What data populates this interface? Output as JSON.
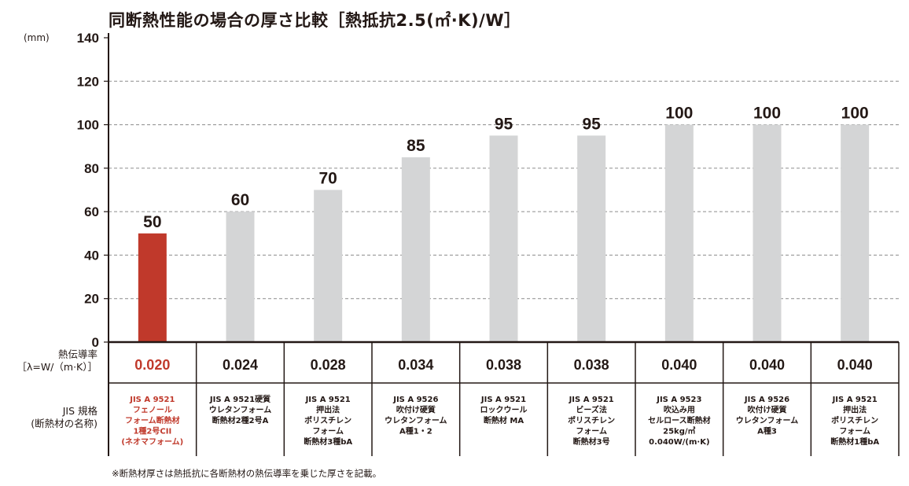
{
  "chart_data": {
    "type": "bar",
    "title": "同断熱性能の場合の厚さ比較［熱抵抗2.5(㎡·K)/W］",
    "ylabel": "(mm)",
    "ylim": [
      0,
      140
    ],
    "yticks": [
      0,
      20,
      40,
      60,
      80,
      100,
      120,
      140
    ],
    "grid": true,
    "categories": [
      "JIS A 9521 フェノールフォーム断熱材 1種2号CII (ネオマフォーム)",
      "JIS A 9521硬質ウレタンフォーム断熱材2種2号A",
      "JIS A 9521 押出法ポリスチレンフォーム断熱材3種bA",
      "JIS A 9526 吹付け硬質ウレタンフォーム A種1・2",
      "JIS A 9521 ロックウール断熱材 MA",
      "JIS A 9521 ビーズ法ポリスチレンフォーム断熱材3号",
      "JIS A 9523 吹込み用セルロース断熱材 25kg/㎥ 0.040W/(m·K)",
      "JIS A 9526 吹付け硬質ウレタンフォーム A種3",
      "JIS A 9521 押出法ポリスチレンフォーム断熱材1種bA"
    ],
    "values": [
      50,
      60,
      70,
      85,
      95,
      95,
      100,
      100,
      100
    ],
    "value_labels": [
      "50",
      "60",
      "70",
      "85",
      "95",
      "95",
      "100",
      "100",
      "100"
    ],
    "highlight_index": 0,
    "colors": {
      "highlight": "#c0392b",
      "bar": "#d4d5d6",
      "axis": "#231815",
      "grid": "#8c8c8c"
    }
  },
  "table": {
    "conductivity_header": [
      "熱伝導率",
      "［λ=W/（m·K）］"
    ],
    "conductivity": [
      "0.020",
      "0.024",
      "0.028",
      "0.034",
      "0.038",
      "0.038",
      "0.040",
      "0.040",
      "0.040"
    ],
    "jis_header": [
      "JIS 規格",
      "(断熱材の名称)"
    ],
    "jis_names": [
      [
        "JIS A 9521",
        "フェノール",
        "フォーム断熱材",
        "1種2号CII",
        "(ネオマフォーム)"
      ],
      [
        "JIS A 9521硬質",
        "ウレタンフォーム",
        "断熱材2種2号A"
      ],
      [
        "JIS A 9521",
        "押出法",
        "ポリスチレン",
        "フォーム",
        "断熱材3種bA"
      ],
      [
        "JIS A 9526",
        "吹付け硬質",
        "ウレタンフォーム",
        "A種1・2"
      ],
      [
        "JIS A 9521",
        "ロックウール",
        "断熱材 MA"
      ],
      [
        "JIS A 9521",
        "ビーズ法",
        "ポリスチレン",
        "フォーム",
        "断熱材3号"
      ],
      [
        "JIS A 9523",
        "吹込み用",
        "セルロース断熱材",
        "25kg/㎥",
        "0.040W/(m·K)"
      ],
      [
        "JIS A 9526",
        "吹付け硬質",
        "ウレタンフォーム",
        "A種3"
      ],
      [
        "JIS A 9521",
        "押出法",
        "ポリスチレン",
        "フォーム",
        "断熱材1種bA"
      ]
    ]
  },
  "footnote": "※断熱材厚さは熱抵抗に各断熱材の熱伝導率を乗じた厚さを記載。"
}
